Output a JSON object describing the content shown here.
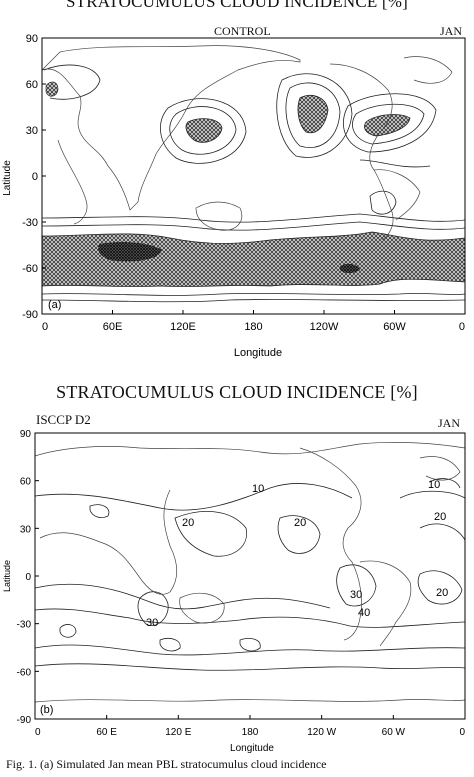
{
  "panel_a": {
    "title": "STRATOCUMULUS CLOUD INCIDENCE [%]",
    "subtitle": "CONTROL",
    "month": "JAN",
    "panel_label": "(a)",
    "ylabel": "Latitude",
    "xlabel": "Longitude",
    "lat_ticks": [
      "90",
      "60",
      "30",
      "0",
      "-30",
      "-60",
      "-90"
    ],
    "lon_ticks": [
      "0",
      "60E",
      "120E",
      "180",
      "120W",
      "60W",
      "0"
    ]
  },
  "panel_b": {
    "title": "STRATOCUMULUS CLOUD INCIDENCE [%]",
    "subtitle": "ISCCP D2",
    "month": "JAN",
    "panel_label": "(b)",
    "ylabel": "Latitude",
    "xlabel": "Longitude",
    "lat_ticks": [
      "90",
      "60",
      "30",
      "0",
      "-30",
      "-60",
      "-90"
    ],
    "lon_ticks": [
      "0",
      "60 E",
      "120 E",
      "180",
      "120 W",
      "60 W",
      "0"
    ],
    "contour_labels": [
      "10",
      "10",
      "20",
      "20",
      "20",
      "30",
      "40",
      "20",
      "30"
    ]
  },
  "caption": "Fig. 1. (a) Simulated Jan mean PBL stratocumulus cloud incidence"
}
